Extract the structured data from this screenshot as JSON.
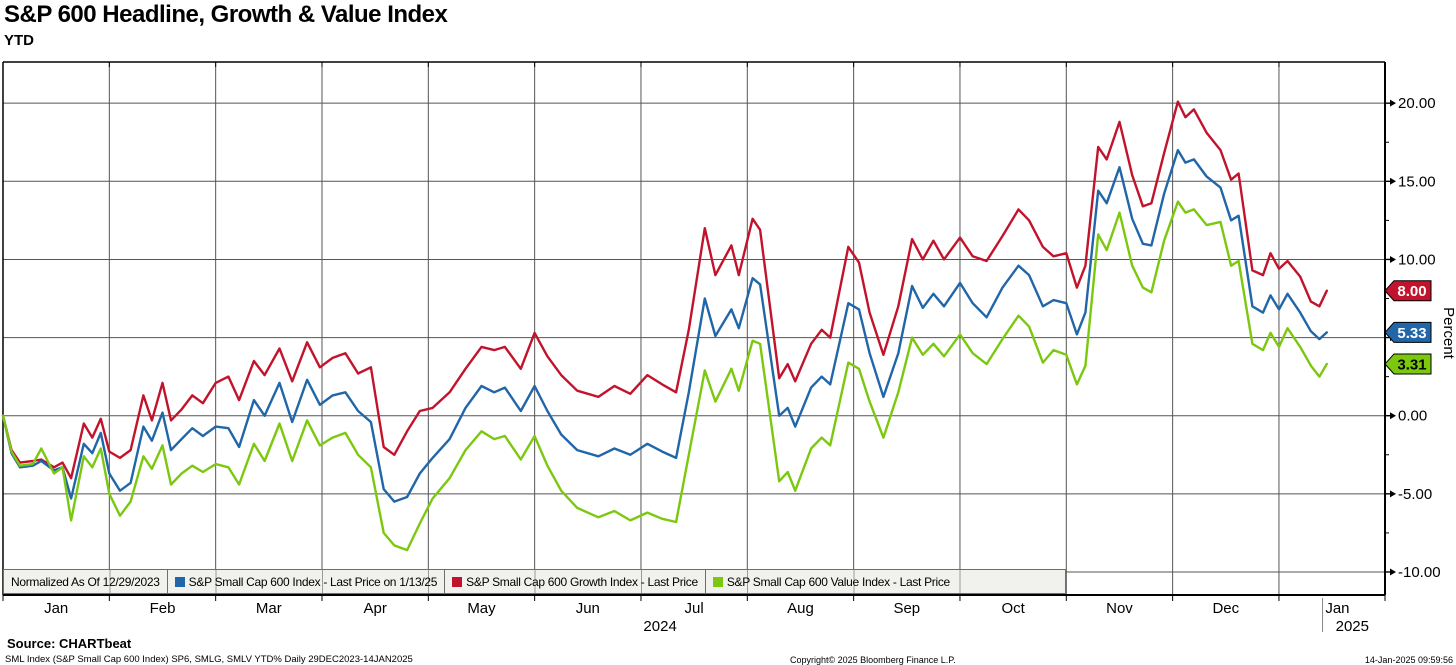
{
  "header": {
    "title": "S&P 600 Headline, Growth & Value Index",
    "subtitle": "YTD"
  },
  "colors": {
    "grid": "#555555",
    "axis": "#000000",
    "legend_bg": "#f1f1ee",
    "red": "#c2132c",
    "blue": "#2066a8",
    "green": "#7cc80f"
  },
  "y_axis": {
    "label": "Percent",
    "tick_values": [
      -10,
      -5,
      0,
      5,
      10,
      15,
      20
    ],
    "tick_labels": [
      "-10.00",
      "-5.00",
      "0.00",
      "5.00",
      "10.00",
      "15.00",
      "20.00"
    ],
    "minor_step": 2.5,
    "range": [
      -11.5,
      22.6
    ]
  },
  "x_axis": {
    "month_labels": [
      "Jan",
      "Feb",
      "Mar",
      "Apr",
      "May",
      "Jun",
      "Jul",
      "Aug",
      "Sep",
      "Oct",
      "Nov",
      "Dec",
      "Jan"
    ],
    "years": [
      {
        "label": "2024",
        "month_pos": 6.18,
        "divider": null
      },
      {
        "label": "2025",
        "month_pos": 12.69,
        "divider": 12.41
      }
    ]
  },
  "price_tags": [
    {
      "value": "8.00",
      "y": 8.0,
      "fill": "#c2132c",
      "text_color": "#ffffff"
    },
    {
      "value": "5.33",
      "y": 5.33,
      "fill": "#2066a8",
      "text_color": "#ffffff"
    },
    {
      "value": "3.31",
      "y": 3.31,
      "fill": "#7cc80f",
      "text_color": "#000000"
    }
  ],
  "legend": {
    "items": [
      {
        "label": "Normalized As Of 12/29/2023",
        "color": null
      },
      {
        "label": "S&P Small Cap 600 Index - Last Price on 1/13/25",
        "color": "#2066a8"
      },
      {
        "label": "S&P Small Cap 600 Growth Index - Last Price",
        "color": "#c2132c"
      },
      {
        "label": "S&P Small Cap 600 Value Index - Last Price",
        "color": "#7cc80f"
      }
    ]
  },
  "footer": {
    "source": "Source: CHARTbeat",
    "detail": "SML Index (S&P Small Cap 600 Index) SP6, SMLG, SMLV YTD%  Daily 29DEC2023-14JAN2025",
    "copyright": "Copyright© 2025 Bloomberg Finance L.P.",
    "timestamp": "14-Jan-2025 09:59:56"
  },
  "chart_data": {
    "type": "line",
    "title": "S&P 600 Headline, Growth & Value Index — YTD",
    "ylabel": "Percent",
    "ylim": [
      -11.5,
      22.6
    ],
    "grid": true,
    "legend_position": "bottom-inside",
    "x_unit": "months from 12/29/2023",
    "x_months": [
      0,
      0.08,
      0.16,
      0.28,
      0.36,
      0.48,
      0.56,
      0.64,
      0.76,
      0.84,
      0.92,
      1.0,
      1.1,
      1.2,
      1.32,
      1.4,
      1.5,
      1.58,
      1.68,
      1.78,
      1.88,
      2.0,
      2.12,
      2.22,
      2.36,
      2.46,
      2.6,
      2.72,
      2.86,
      2.98,
      3.1,
      3.22,
      3.34,
      3.46,
      3.58,
      3.68,
      3.8,
      3.92,
      4.04,
      4.2,
      4.35,
      4.5,
      4.62,
      4.72,
      4.87,
      5.0,
      5.12,
      5.25,
      5.4,
      5.6,
      5.75,
      5.9,
      6.06,
      6.2,
      6.33,
      6.45,
      6.6,
      6.7,
      6.85,
      6.92,
      7.05,
      7.12,
      7.3,
      7.38,
      7.45,
      7.6,
      7.7,
      7.78,
      7.95,
      8.05,
      8.15,
      8.28,
      8.42,
      8.55,
      8.65,
      8.75,
      8.85,
      9.0,
      9.12,
      9.25,
      9.4,
      9.55,
      9.65,
      9.78,
      9.88,
      10.0,
      10.1,
      10.18,
      10.3,
      10.38,
      10.5,
      10.62,
      10.72,
      10.8,
      10.92,
      11.05,
      11.12,
      11.2,
      11.32,
      11.45,
      11.55,
      11.62,
      11.75,
      11.85,
      11.92,
      12.0,
      12.08,
      12.2,
      12.3,
      12.38,
      12.45
    ],
    "series": [
      {
        "name": "S&P Small Cap 600 Growth Index - Last Price",
        "color": "#c2132c",
        "last_value": 8.0,
        "values": [
          0,
          -2.2,
          -3.0,
          -2.9,
          -2.8,
          -3.3,
          -3.0,
          -4.0,
          -0.5,
          -1.4,
          -0.2,
          -2.3,
          -2.7,
          -2.2,
          1.3,
          -0.3,
          2.1,
          -0.3,
          0.4,
          1.3,
          0.8,
          2.1,
          2.5,
          1.0,
          3.5,
          2.6,
          4.3,
          2.2,
          4.7,
          3.1,
          3.7,
          4.0,
          2.7,
          3.1,
          -2.0,
          -2.5,
          -1.0,
          0.3,
          0.5,
          1.5,
          3.0,
          4.4,
          4.2,
          4.4,
          3.0,
          5.3,
          3.8,
          2.6,
          1.6,
          1.2,
          1.9,
          1.4,
          2.6,
          2.0,
          1.5,
          5.5,
          12.0,
          9.0,
          10.9,
          9.0,
          12.6,
          11.9,
          2.4,
          3.3,
          2.2,
          4.6,
          5.5,
          5.0,
          10.8,
          9.8,
          6.6,
          3.9,
          7.0,
          11.3,
          10.0,
          11.2,
          10.0,
          11.4,
          10.2,
          9.9,
          11.5,
          13.2,
          12.5,
          10.8,
          10.2,
          10.4,
          8.2,
          9.6,
          17.2,
          16.4,
          18.8,
          15.4,
          13.4,
          13.6,
          16.8,
          20.1,
          19.1,
          19.6,
          18.1,
          17.0,
          15.1,
          15.5,
          9.3,
          9.0,
          10.4,
          9.4,
          9.9,
          8.9,
          7.3,
          7.0,
          8.0
        ]
      },
      {
        "name": "S&P Small Cap 600 Index - Last Price on 1/13/25",
        "color": "#2066a8",
        "last_value": 5.33,
        "values": [
          0,
          -2.4,
          -3.3,
          -3.2,
          -2.9,
          -3.5,
          -3.3,
          -5.3,
          -1.8,
          -2.4,
          -1.1,
          -3.7,
          -4.8,
          -4.3,
          -0.7,
          -1.6,
          0.2,
          -2.2,
          -1.5,
          -0.8,
          -1.3,
          -0.7,
          -0.8,
          -2.0,
          1.0,
          0.0,
          2.1,
          -0.4,
          2.3,
          0.7,
          1.3,
          1.5,
          0.3,
          -0.4,
          -4.7,
          -5.5,
          -5.2,
          -3.7,
          -2.7,
          -1.5,
          0.5,
          1.9,
          1.5,
          1.8,
          0.3,
          1.9,
          0.3,
          -1.2,
          -2.2,
          -2.6,
          -2.1,
          -2.5,
          -1.8,
          -2.3,
          -2.7,
          1.5,
          7.5,
          5.1,
          6.8,
          5.6,
          8.8,
          8.4,
          0.0,
          0.5,
          -0.7,
          1.8,
          2.5,
          2.0,
          7.2,
          6.8,
          4.0,
          1.2,
          4.0,
          8.3,
          6.9,
          7.8,
          7.0,
          8.5,
          7.2,
          6.3,
          8.2,
          9.6,
          9.0,
          7.0,
          7.4,
          7.2,
          5.2,
          6.6,
          14.4,
          13.6,
          15.9,
          12.6,
          11.0,
          10.9,
          14.2,
          17.0,
          16.2,
          16.4,
          15.3,
          14.6,
          12.5,
          12.8,
          7.0,
          6.6,
          7.7,
          6.8,
          7.8,
          6.6,
          5.4,
          4.9,
          5.33
        ]
      },
      {
        "name": "S&P Small Cap 600 Value Index - Last Price",
        "color": "#7cc80f",
        "last_value": 3.31,
        "values": [
          0,
          -2.3,
          -3.2,
          -3.1,
          -2.1,
          -3.7,
          -3.3,
          -6.7,
          -2.6,
          -3.3,
          -2.1,
          -5.0,
          -6.4,
          -5.5,
          -2.6,
          -3.4,
          -1.9,
          -4.4,
          -3.7,
          -3.2,
          -3.6,
          -3.1,
          -3.3,
          -4.4,
          -1.8,
          -2.9,
          -0.5,
          -2.9,
          -0.3,
          -1.9,
          -1.4,
          -1.1,
          -2.5,
          -3.3,
          -7.5,
          -8.3,
          -8.6,
          -6.9,
          -5.3,
          -4.0,
          -2.2,
          -1.0,
          -1.5,
          -1.3,
          -2.8,
          -1.3,
          -3.2,
          -4.8,
          -5.9,
          -6.5,
          -6.1,
          -6.7,
          -6.2,
          -6.6,
          -6.8,
          -2.5,
          2.9,
          0.9,
          3.0,
          1.6,
          4.8,
          4.6,
          -4.2,
          -3.6,
          -4.8,
          -2.1,
          -1.4,
          -1.9,
          3.4,
          3.0,
          0.9,
          -1.4,
          1.5,
          5.0,
          3.9,
          4.6,
          3.8,
          5.2,
          4.0,
          3.3,
          4.9,
          6.4,
          5.7,
          3.4,
          4.2,
          3.9,
          2.0,
          3.2,
          11.6,
          10.6,
          13.0,
          9.6,
          8.2,
          7.9,
          11.2,
          13.7,
          13.0,
          13.2,
          12.2,
          12.4,
          9.6,
          9.9,
          4.6,
          4.2,
          5.3,
          4.4,
          5.6,
          4.4,
          3.2,
          2.5,
          3.31
        ]
      }
    ],
    "annotation": "Normalized As Of 12/29/2023"
  }
}
